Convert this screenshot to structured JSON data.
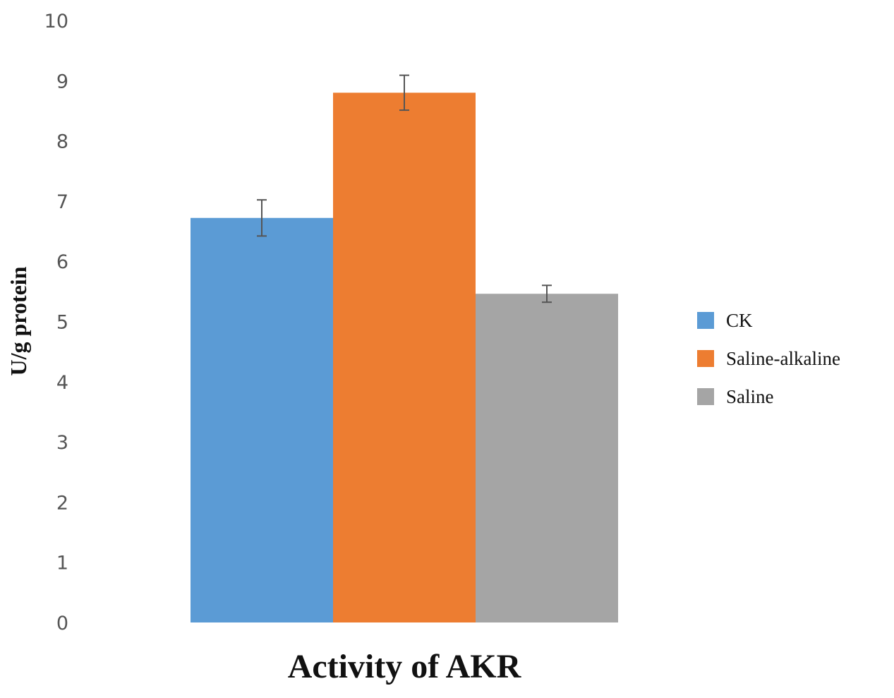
{
  "chart_data": {
    "type": "bar",
    "title": "",
    "xlabel": "Activity of AKR",
    "ylabel": "U/g protein",
    "ylim": [
      0,
      10
    ],
    "yticks": [
      "0",
      "1",
      "2",
      "3",
      "4",
      "5",
      "6",
      "7",
      "8",
      "9",
      "10"
    ],
    "grid": false,
    "legend_position": "right",
    "series": [
      {
        "name": "CK",
        "value": 6.72,
        "error": 0.3,
        "color": "#5b9bd5"
      },
      {
        "name": "Saline-alkaline",
        "value": 8.8,
        "error": 0.29,
        "color": "#ed7d31"
      },
      {
        "name": "Saline",
        "value": 5.46,
        "error": 0.14,
        "color": "#a5a5a5"
      }
    ]
  }
}
